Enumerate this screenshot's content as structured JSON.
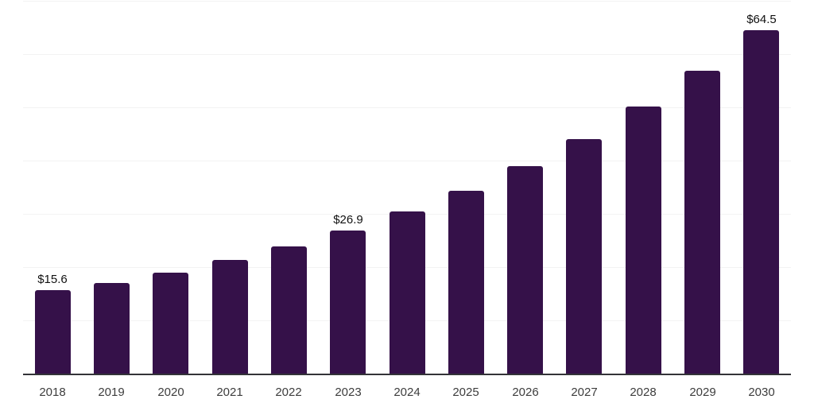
{
  "chart_data": {
    "type": "bar",
    "title": "",
    "xlabel": "",
    "ylabel": "",
    "categories": [
      "2018",
      "2019",
      "2020",
      "2021",
      "2022",
      "2023",
      "2024",
      "2025",
      "2026",
      "2027",
      "2028",
      "2029",
      "2030"
    ],
    "values": [
      15.6,
      17.0,
      19.0,
      21.3,
      23.9,
      26.9,
      30.4,
      34.3,
      39.0,
      44.1,
      50.2,
      56.9,
      64.5
    ],
    "data_labels": [
      "$15.6",
      null,
      null,
      null,
      null,
      "$26.9",
      null,
      null,
      null,
      null,
      null,
      null,
      "$64.5"
    ],
    "ylim": [
      0,
      70
    ],
    "gridline_step": 10,
    "grid": "horizontal-only",
    "legend_position": "none",
    "colors": {
      "bar": "#351149",
      "axis_line": "#333338",
      "gridline": "#f3f3f3",
      "tick_label": "#3d3d3d",
      "data_label": "#111111",
      "background": "#ffffff"
    }
  }
}
